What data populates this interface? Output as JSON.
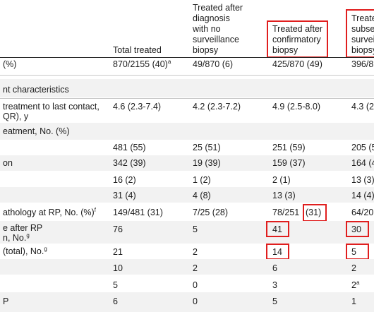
{
  "header": {
    "col1": [
      "Total treated"
    ],
    "col2": [
      "Treated after",
      "diagnosis",
      "with no",
      "surveillance",
      "biopsy"
    ],
    "col3": [
      "Treated after",
      "confirmatory",
      "biopsy"
    ],
    "col4": [
      "Treate",
      "subse",
      "survei",
      "biopsy"
    ]
  },
  "rows": [
    {
      "label": "(%)",
      "c1": "870/2155 (40)",
      "c1sup": "a",
      "c2": "49/870 (6)",
      "c3": "425/870 (49)",
      "c4": "396/8"
    },
    {
      "label": "nt characteristics"
    },
    {
      "label1": " treatment to last contact,",
      "label2": "QR), y",
      "c1": "4.6 (2.3-7.4)",
      "c2": "4.2 (2.3-7.2)",
      "c3": "4.9 (2.5-8.0)",
      "c4": "4.3 (2"
    },
    {
      "label": "eatment, No. (%)"
    },
    {
      "label": "",
      "c1": "481 (55)",
      "c2": "25 (51)",
      "c3": "251 (59)",
      "c4": "205 (5"
    },
    {
      "label": "on",
      "c1": "342 (39)",
      "c2": "19 (39)",
      "c3": "159 (37)",
      "c4": "164 (4"
    },
    {
      "label": "",
      "c1": "16 (2)",
      "c2": "1 (2)",
      "c3": "2 (1)",
      "c4": "13 (3)"
    },
    {
      "label": "",
      "c1": "31 (4)",
      "c2": "4 (8)",
      "c3": "13 (3)",
      "c4": "14 (4)"
    },
    {
      "label": "athology at RP, No. (%)",
      "labelsup": "f",
      "c1": "149/481 (31)",
      "c2": "7/25 (28)",
      "c3a": "78/251",
      "c3b": "(31)",
      "c4": "64/20"
    },
    {
      "label1": "e after RP",
      "label2": "n, No.",
      "label2sup": "g",
      "c1": "76",
      "c2": "5",
      "c3": "41",
      "c4": "30"
    },
    {
      "label": " (total), No.",
      "labelsup": "g",
      "c1": "21",
      "c2": "2",
      "c3": "14",
      "c4": "5"
    },
    {
      "label": "",
      "c1": "10",
      "c2": "2",
      "c3": "6",
      "c4": "2"
    },
    {
      "label": "",
      "c1": "5",
      "c2": "0",
      "c3": "3",
      "c4": "2",
      "c4sup": "a"
    },
    {
      "label": "P",
      "c1": "6",
      "c2": "0",
      "c3": "5",
      "c4": "1"
    }
  ]
}
